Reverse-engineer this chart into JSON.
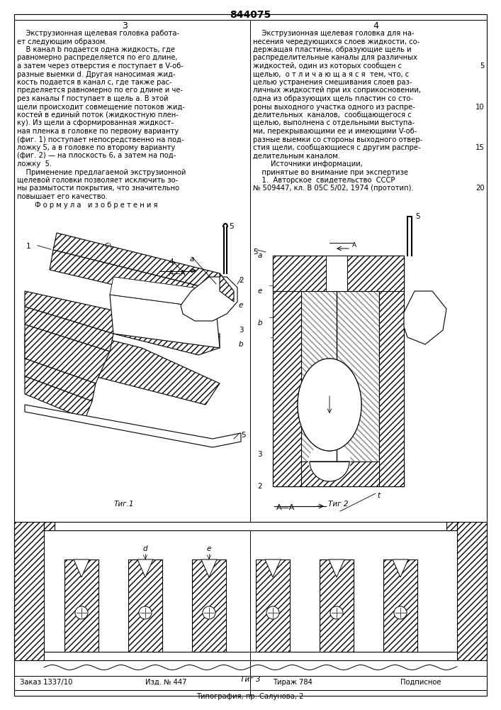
{
  "title": "844075",
  "page_num_left": "3",
  "page_num_right": "4",
  "col1_lines": [
    "    Экструзионная щелевая головка работа-",
    "ет следующим образом.",
    "    В канал b подается одна жидкость, где",
    "равномерно распределяется по его длине,",
    "а затем через отверстия e поступает в V-об-",
    "разные выемки d. Другая наносимая жид-",
    "кость подается в канал c, где также рас-",
    "пределяется равномерно по его длине и че-",
    "рез каналы f поступает в щель a. В этой",
    "щели происходит совмещение потоков жид-",
    "костей в единый поток (жидкостную плен-",
    "ку). Из щели a сформированная жидкост-",
    "ная пленка в головке по первому варианту",
    "(фиг. 1) поступает непосредственно на под-",
    "ложку 5, а в головке по второму варианту",
    "(фиг. 2) — на плоскость 6, а затем на под-",
    "ложку  5.",
    "    Применение предлагаемой экструзионной",
    "щелевой головки позволяет исключить зо-",
    "ны размытости покрытия, что значительно",
    "повышает его качество.",
    "        Ф о р м у л а   и з о б р е т е н и я"
  ],
  "col2_lines": [
    "    Экструзионная щелевая головка для на-",
    "несения чередующихся слоев жидкости, со-",
    "держащая пластины, образующие щель и",
    "распределительные каналы для различных",
    "жидкостей, один из которых сообщен с",
    "щелью,  о т л и ч а ю щ а я с я  тем, что, с",
    "целью устранения смешивания слоев раз-",
    "личных жидкостей при их соприкосновении,",
    "одна из образующих щель пластин со сто-",
    "роны выходного участка одного из распре-",
    "делительных  каналов,  сообщающегося с",
    "щелью, выполнена с отдельными выступа-",
    "ми, перекрывающими ее и имеющими V-об-",
    "разные выемки со стороны выходного отвер-",
    "стия щели, сообщающиеся с другим распре-",
    "делительным каналом.",
    "        Источники информации,",
    "    принятые во внимание при экспертизе",
    "    1.  Авторское  свидетельство  СССР",
    "№ 509447, кл. В 05C 5/02, 1974 (прототип)."
  ],
  "col2_linenos": [
    [
      4,
      "5"
    ],
    [
      9,
      "10"
    ],
    [
      14,
      "15"
    ],
    [
      19,
      "20"
    ]
  ],
  "fig1_caption": "Τиг.1",
  "fig2_caption": "Τиг 2",
  "fig3_caption": "Τиг 3",
  "aa_label": "A—A",
  "footer": [
    "Заказ 1337/10",
    "Изд. № 447",
    "Тираж 784",
    "Подписное"
  ],
  "footer2": "Типография, пр. Салунова, 2",
  "bg": "#ffffff",
  "lc": "#000000"
}
